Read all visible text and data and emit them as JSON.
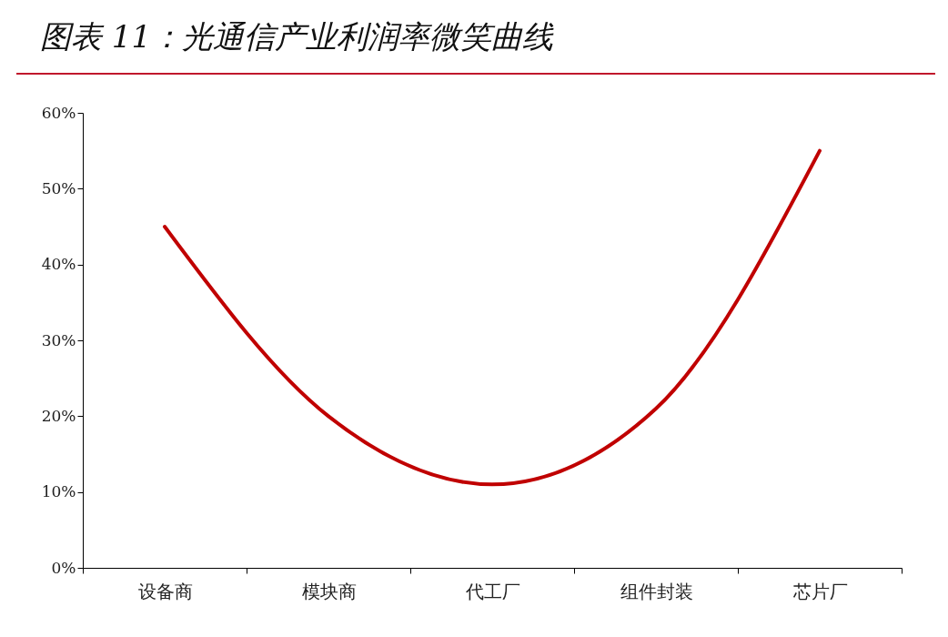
{
  "chart_data": {
    "type": "line",
    "title": "图表 11：光通信产业利润率微笑曲线",
    "categories": [
      "设备商",
      "模块商",
      "代工厂",
      "组件封装",
      "芯片厂"
    ],
    "series": [
      {
        "color": "#c00000",
        "values": [
          45,
          20,
          11,
          21,
          55
        ]
      }
    ],
    "ylim": [
      0,
      60
    ],
    "yticks": [
      {
        "value": 0,
        "label": "0%"
      },
      {
        "value": 10,
        "label": "10%"
      },
      {
        "value": 20,
        "label": "20%"
      },
      {
        "value": 30,
        "label": "30%"
      },
      {
        "value": 40,
        "label": "40%"
      },
      {
        "value": 50,
        "label": "50%"
      },
      {
        "value": 60,
        "label": "60%"
      }
    ],
    "grid": false,
    "marker": "none",
    "line_style": "solid"
  }
}
